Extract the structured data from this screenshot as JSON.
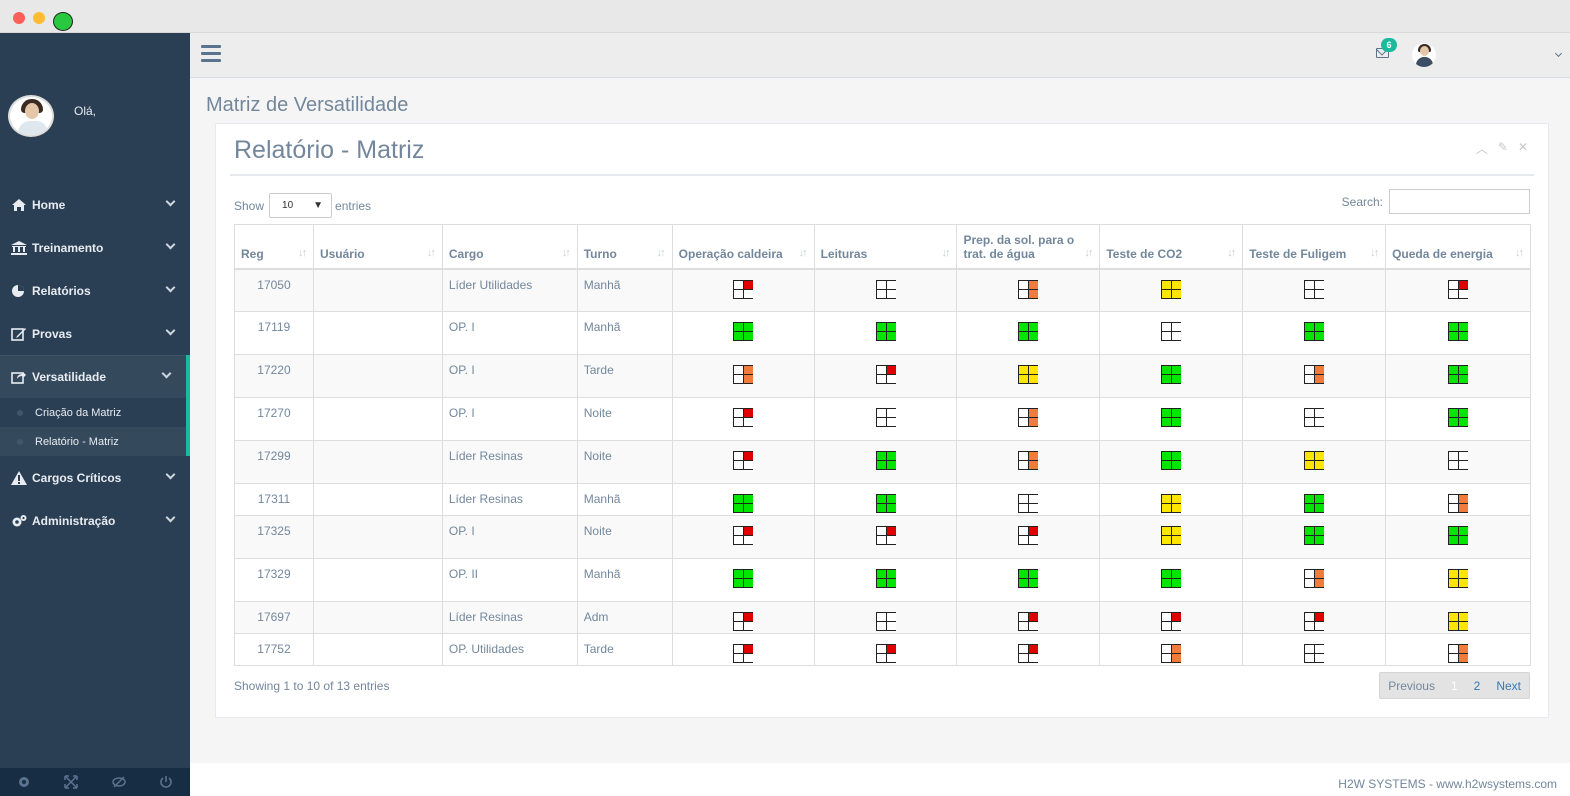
{
  "sidebar": {
    "greeting": "Olá,",
    "items": [
      {
        "label": "Home",
        "icon": "home-icon"
      },
      {
        "label": "Treinamento",
        "icon": "bank-icon"
      },
      {
        "label": "Relatórios",
        "icon": "pie-chart-icon"
      },
      {
        "label": "Provas",
        "icon": "edit-icon"
      },
      {
        "label": "Versatilidade",
        "icon": "share-square-icon"
      },
      {
        "label": "Cargos Críticos",
        "icon": "warning-icon"
      },
      {
        "label": "Administração",
        "icon": "cogs-icon"
      }
    ],
    "subitems": [
      {
        "label": "Criação da Matriz"
      },
      {
        "label": "Relatório - Matriz"
      }
    ]
  },
  "topbar": {
    "mail_count": "6"
  },
  "page": {
    "title": "Matriz de Versatilidade"
  },
  "panel": {
    "title": "Relatório - Matriz"
  },
  "table_controls": {
    "show_label": "Show",
    "length_value": "10",
    "entries_label": "entries",
    "search_label": "Search:"
  },
  "table": {
    "headers": [
      "Reg",
      "Usuário",
      "Cargo",
      "Turno",
      "Operação caldeira",
      "Leituras",
      "Prep. da sol. para o trat. de água",
      "Teste de CO2",
      "Teste de Fuligem",
      "Queda de energia"
    ],
    "rows": [
      {
        "reg": "17050",
        "usuario": "",
        "cargo": "Líder Utilidades",
        "turno": "Manhã",
        "levels": [
          "red1",
          "empty",
          "orange2",
          "yellow4",
          "empty",
          "red1"
        ]
      },
      {
        "reg": "17119",
        "usuario": "",
        "cargo": "OP. I",
        "turno": "Manhã",
        "levels": [
          "green4",
          "green4",
          "green4",
          "empty",
          "green4",
          "green4"
        ]
      },
      {
        "reg": "17220",
        "usuario": "",
        "cargo": "OP. I",
        "turno": "Tarde",
        "levels": [
          "orange2",
          "red1",
          "yellow4",
          "green4",
          "orange2",
          "green4"
        ]
      },
      {
        "reg": "17270",
        "usuario": "",
        "cargo": "OP. I",
        "turno": "Noite",
        "levels": [
          "red1",
          "empty",
          "orange2",
          "green4",
          "empty",
          "green4"
        ]
      },
      {
        "reg": "17299",
        "usuario": "",
        "cargo": "Líder Resinas",
        "turno": "Noite",
        "levels": [
          "red1",
          "green4",
          "orange2",
          "green4",
          "yellow4",
          "empty"
        ]
      },
      {
        "reg": "17311",
        "usuario": "",
        "cargo": "Líder Resinas",
        "turno": "Manhã",
        "levels": [
          "green4",
          "green4",
          "empty",
          "yellow4",
          "green4",
          "orange2"
        ]
      },
      {
        "reg": "17325",
        "usuario": "",
        "cargo": "OP. I",
        "turno": "Noite",
        "levels": [
          "red1",
          "red1",
          "red1",
          "yellow4",
          "green4",
          "green4"
        ]
      },
      {
        "reg": "17329",
        "usuario": "",
        "cargo": "OP. II",
        "turno": "Manhã",
        "levels": [
          "green4",
          "green4",
          "green4",
          "green4",
          "orange2",
          "yellow4"
        ]
      },
      {
        "reg": "17697",
        "usuario": "",
        "cargo": "Líder Resinas",
        "turno": "Adm",
        "levels": [
          "red1",
          "empty",
          "red1",
          "red1",
          "red1",
          "yellow4"
        ]
      },
      {
        "reg": "17752",
        "usuario": "",
        "cargo": "OP. Utilidades",
        "turno": "Tarde",
        "levels": [
          "red1",
          "red1",
          "red1",
          "orange2",
          "empty",
          "orange2"
        ]
      }
    ]
  },
  "level_colors": {
    "red": "#e00000",
    "orange": "#f07c3c",
    "yellow": "#ffe600",
    "green": "#00e600"
  },
  "pagination": {
    "info": "Showing 1 to 10 of 13 entries",
    "previous": "Previous",
    "pages": [
      "1",
      "2"
    ],
    "next": "Next"
  },
  "footer": {
    "text": "H2W SYSTEMS - www.h2wsystems.com"
  }
}
